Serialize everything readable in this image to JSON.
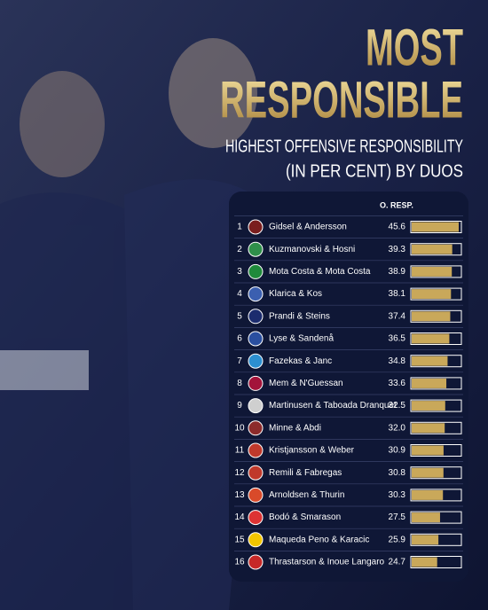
{
  "chart_data": {
    "type": "bar",
    "title_lines": [
      "MOST",
      "RESPONSIBLE"
    ],
    "subtitle_lines": [
      "HIGHEST OFFENSIVE RESPONSIBILITY",
      "(IN PER CENT) BY DUOS"
    ],
    "column_header": "O. RESP.",
    "ranks": [
      1,
      2,
      3,
      4,
      5,
      6,
      7,
      8,
      9,
      10,
      11,
      12,
      13,
      14,
      15,
      16
    ],
    "categories": [
      "Gidsel & Andersson",
      "Kuzmanovski & Hosni",
      "Mota Costa & Mota Costa",
      "Klarica & Kos",
      "Prandi & Steins",
      "Lyse & Sandenå",
      "Fazekas & Janc",
      "Mem & N'Guessan",
      "Martinusen & Taboada Dranquet",
      "Minne & Abdi",
      "Kristjansson & Weber",
      "Remili & Fabregas",
      "Arnoldsen & Thurin",
      "Bodó & Smarason",
      "Maqueda Peno & Karacic",
      "Thrastarson & Inoue Langaro"
    ],
    "values": [
      45.6,
      39.3,
      38.9,
      38.1,
      37.4,
      36.5,
      34.8,
      33.6,
      32.5,
      32.0,
      30.9,
      30.8,
      30.3,
      27.5,
      25.9,
      24.7
    ],
    "value_labels": [
      "45.6",
      "39.3",
      "38.9",
      "38.1",
      "37.4",
      "36.5",
      "34.8",
      "33.6",
      "32.5",
      "32.0",
      "30.9",
      "30.8",
      "30.3",
      "27.5",
      "25.9",
      "24.7"
    ],
    "color": "#c9a85a"
  }
}
